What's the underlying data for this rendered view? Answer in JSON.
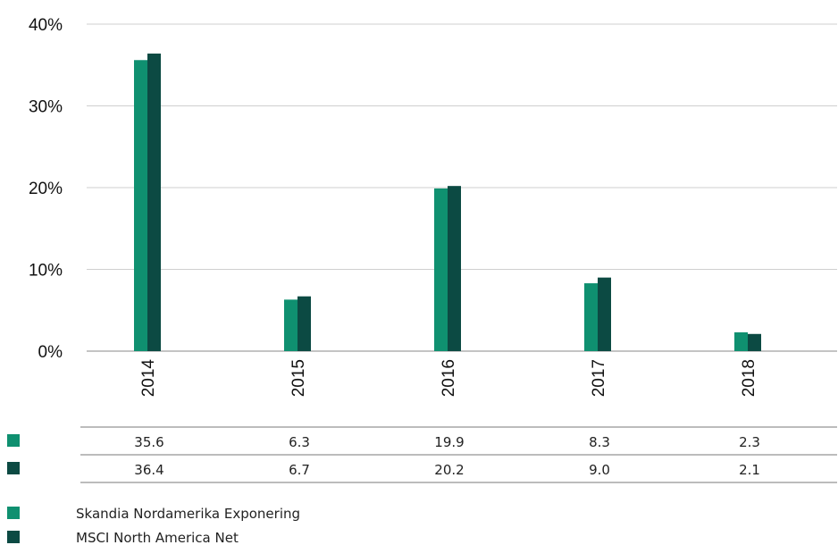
{
  "chart_data": {
    "type": "bar",
    "categories": [
      "2014",
      "2015",
      "2016",
      "2017",
      "2018"
    ],
    "series": [
      {
        "name": "Skandia Nordamerika Exponering",
        "color": "#0f9070",
        "values": [
          35.6,
          6.3,
          19.9,
          8.3,
          2.3
        ]
      },
      {
        "name": "MSCI North America Net",
        "color": "#0c4a43",
        "values": [
          36.4,
          6.7,
          20.2,
          9.0,
          2.1
        ]
      }
    ],
    "table_values": [
      [
        "35.6",
        "6.3",
        "19.9",
        "8.3",
        "2.3"
      ],
      [
        "36.4",
        "6.7",
        "20.2",
        "9.0",
        "2.1"
      ]
    ],
    "yticks": [
      "0%",
      "10%",
      "20%",
      "30%",
      "40%"
    ],
    "ylim": [
      0,
      40
    ],
    "grid": true,
    "legend_position": "bottom-left"
  }
}
